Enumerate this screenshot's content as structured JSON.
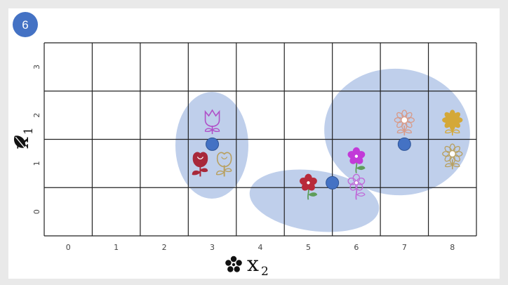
{
  "badge": {
    "label": "6",
    "color": "#4472c4"
  },
  "axes": {
    "x_symbol": "x",
    "x_subscript": "2",
    "x_icon": "flower-cluster-icon",
    "y_symbol": "x",
    "y_subscript": "1",
    "y_icon": "leaf-icon",
    "x_ticks": [
      "0",
      "1",
      "2",
      "3",
      "4",
      "5",
      "6",
      "7",
      "8"
    ],
    "y_ticks": [
      "0",
      "1",
      "2",
      "3"
    ]
  },
  "grid": {
    "columns": 9,
    "rows": 4,
    "line_color": "#222222"
  },
  "clusters": [
    {
      "name": "left",
      "centroid": {
        "x": 3,
        "y": 1.4
      }
    },
    {
      "name": "bottom",
      "centroid": {
        "x": 5.5,
        "y": 0.6
      }
    },
    {
      "name": "right",
      "centroid": {
        "x": 7,
        "y": 1.4
      }
    }
  ],
  "flowers": [
    {
      "icon": "tulip-outline-icon",
      "color": "#b04fc8",
      "x": 3,
      "y": 1.9
    },
    {
      "icon": "rose-filled-icon",
      "color": "#a8283a",
      "x": 2.75,
      "y": 1.05
    },
    {
      "icon": "rose-outline-icon",
      "color": "#b8a060",
      "x": 3.25,
      "y": 1.05
    },
    {
      "icon": "flower-filled-icon",
      "color": "#b82a3a",
      "x": 5,
      "y": 0.6
    },
    {
      "icon": "flower-outline-icon",
      "color": "#c06ad8",
      "x": 6,
      "y": 0.6
    },
    {
      "icon": "flower-filled-icon",
      "color": "#c23ad8",
      "x": 6,
      "y": 1.15
    },
    {
      "icon": "sunflower-outline-icon",
      "color": "#d89a88",
      "x": 7,
      "y": 1.9
    },
    {
      "icon": "sunflower-filled-icon",
      "color": "#d4a838",
      "x": 8,
      "y": 1.9
    },
    {
      "icon": "sunflower-outline-icon",
      "color": "#b8a060",
      "x": 8,
      "y": 1.2
    }
  ],
  "colors": {
    "cluster_fill": "#b4c7e7",
    "centroid": "#4472c4",
    "stem": "#5e9e5a"
  }
}
